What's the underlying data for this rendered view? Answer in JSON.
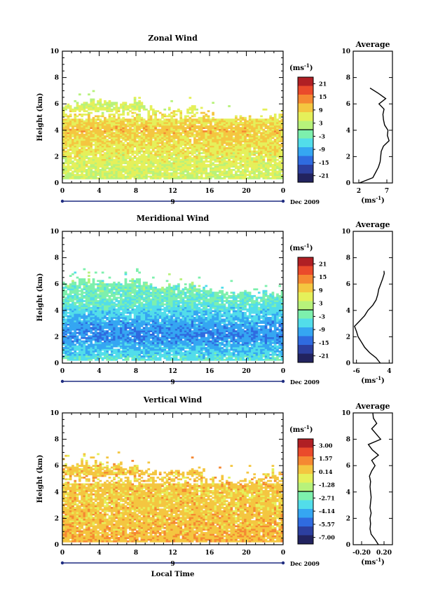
{
  "chart_data": [
    {
      "type": "heatmap",
      "title": "Zonal Wind",
      "xlabel": "",
      "ylabel": "Height (km)",
      "xlim": [
        0,
        24
      ],
      "ylim": [
        0,
        10
      ],
      "xticks": [
        "0",
        "4",
        "8",
        "12",
        "16",
        "20",
        "0"
      ],
      "yticks": [
        "0",
        "2",
        "4",
        "6",
        "8",
        "10"
      ],
      "day_marker": "9",
      "date_label": "Dec 2009",
      "colorbar": {
        "unit_prefix": "(ms",
        "unit_exp": "-1",
        "unit_suffix": ")",
        "ticks": [
          "21",
          "15",
          "9",
          "3",
          "-3",
          "-9",
          "-15",
          "-21"
        ],
        "range": [
          -24,
          24
        ]
      },
      "field": {
        "cloud_base_km": 0.3,
        "cloud_top_km": [
          5.8,
          5.9,
          6.0,
          6.1,
          6.2,
          6.0,
          5.9,
          6.0,
          6.1,
          5.8,
          5.5,
          5.3,
          5.6,
          5.3,
          5.8,
          5.2,
          5.3,
          5.0,
          5.1,
          4.9,
          5.0,
          4.9,
          5.2,
          5.2,
          5.3
        ],
        "gap_km": [
          4.8,
          5.4
        ],
        "profile_km": [
          0,
          1,
          2,
          3,
          4,
          5,
          6
        ],
        "profile_value": [
          3,
          5,
          6,
          8,
          10,
          7,
          4
        ]
      },
      "average": {
        "title": "Average",
        "xlim": [
          1,
          8
        ],
        "xticks": [
          "2",
          "7"
        ],
        "xlabel_prefix": "(ms",
        "xlabel_exp": "-1",
        "xlabel_suffix": ")",
        "height_km": [
          0.0,
          0.4,
          0.8,
          1.2,
          1.6,
          2.0,
          2.4,
          2.8,
          3.2,
          3.6,
          4.0,
          4.4,
          4.8,
          5.2,
          5.6,
          6.0,
          6.4,
          6.8,
          7.2
        ],
        "value": [
          2.1,
          4.5,
          5.0,
          5.5,
          5.8,
          5.9,
          6.0,
          6.4,
          7.4,
          7.1,
          7.2,
          6.6,
          6.4,
          6.3,
          6.5,
          5.6,
          6.8,
          5.5,
          4.0
        ]
      }
    },
    {
      "type": "heatmap",
      "title": "Meridional Wind",
      "xlabel": "",
      "ylabel": "Height (km)",
      "xlim": [
        0,
        24
      ],
      "ylim": [
        0,
        10
      ],
      "xticks": [
        "0",
        "4",
        "8",
        "12",
        "16",
        "20",
        "0"
      ],
      "yticks": [
        "0",
        "2",
        "4",
        "6",
        "8",
        "10"
      ],
      "day_marker": "9",
      "date_label": "Dec 2009",
      "colorbar": {
        "unit_prefix": "(ms",
        "unit_exp": "-1",
        "unit_suffix": ")",
        "ticks": [
          "21",
          "15",
          "9",
          "3",
          "-3",
          "-9",
          "-15",
          "-21"
        ],
        "range": [
          -24,
          24
        ]
      },
      "field": {
        "cloud_base_km": 0.2,
        "cloud_top_km": [
          6.0,
          6.1,
          6.2,
          6.1,
          6.3,
          6.2,
          6.0,
          6.1,
          6.2,
          5.9,
          5.8,
          5.7,
          5.9,
          5.7,
          5.9,
          5.6,
          5.5,
          5.4,
          5.4,
          5.3,
          5.3,
          5.2,
          5.3,
          5.2,
          5.2
        ],
        "gap_km": [
          6.3,
          6.3
        ],
        "profile_km": [
          0,
          1,
          2,
          3,
          4,
          5,
          6
        ],
        "profile_value": [
          -4,
          -8,
          -12,
          -10,
          -6,
          -3,
          -2
        ]
      },
      "average": {
        "title": "Average",
        "xlim": [
          -7,
          5
        ],
        "xticks": [
          "-6",
          "4"
        ],
        "xlabel_prefix": "(ms",
        "xlabel_exp": "-1",
        "xlabel_suffix": ")",
        "height_km": [
          0.0,
          0.4,
          0.8,
          1.2,
          1.6,
          2.0,
          2.4,
          2.8,
          3.2,
          3.6,
          4.0,
          4.4,
          4.8,
          5.2,
          5.6,
          6.0,
          6.4,
          6.8,
          7.0
        ],
        "value": [
          1.3,
          0.0,
          -2.0,
          -3.5,
          -4.5,
          -5.5,
          -6.0,
          -6.6,
          -5.0,
          -3.5,
          -2.5,
          -1.0,
          0.0,
          0.5,
          0.8,
          1.4,
          2.0,
          2.5,
          2.4
        ]
      }
    },
    {
      "type": "heatmap",
      "title": "Vertical Wind",
      "xlabel": "Local Time",
      "ylabel": "Height (km)",
      "xlim": [
        0,
        24
      ],
      "ylim": [
        0,
        10
      ],
      "xticks": [
        "0",
        "4",
        "8",
        "12",
        "16",
        "20",
        "0"
      ],
      "yticks": [
        "0",
        "2",
        "4",
        "6",
        "8",
        "10"
      ],
      "day_marker": "9",
      "date_label": "Dec 2009",
      "colorbar": {
        "unit_prefix": "(ms",
        "unit_exp": "-1",
        "unit_suffix": ")",
        "ticks": [
          "3.00",
          "1.57",
          "0.14",
          "-1.28",
          "-2.71",
          "-4.14",
          "-5.57",
          "-7.00"
        ],
        "range": [
          -7.71,
          3.71
        ]
      },
      "field": {
        "cloud_base_km": 0.2,
        "cloud_top_km": [
          6.1,
          6.0,
          6.3,
          6.1,
          6.2,
          6.0,
          6.1,
          5.8,
          5.9,
          5.5,
          5.4,
          5.3,
          5.5,
          5.3,
          5.6,
          5.2,
          5.0,
          5.0,
          5.1,
          4.9,
          5.0,
          5.1,
          5.2,
          5.3,
          5.4
        ],
        "gap_km": [
          4.6,
          5.2
        ],
        "profile_km": [
          0,
          1,
          2,
          3,
          4,
          5,
          6
        ],
        "profile_value": [
          0.7,
          0.5,
          0.4,
          0.3,
          0.3,
          0.35,
          0.3
        ]
      },
      "average": {
        "title": "Average",
        "xlim": [
          -0.35,
          0.35
        ],
        "xticks": [
          "-0.20",
          "0.20"
        ],
        "xlabel_prefix": "(ms",
        "xlabel_exp": "-1",
        "xlabel_suffix": ")",
        "height_km": [
          0.0,
          0.4,
          0.8,
          1.2,
          1.6,
          2.0,
          2.4,
          2.8,
          3.2,
          3.6,
          4.0,
          4.4,
          4.8,
          5.2,
          5.6,
          6.0,
          6.4,
          6.8,
          7.2,
          7.6,
          8.0,
          8.4,
          8.8,
          9.2,
          9.6,
          10.0
        ],
        "value": [
          0.1,
          0.04,
          -0.03,
          -0.05,
          -0.04,
          -0.05,
          -0.03,
          -0.05,
          -0.04,
          -0.03,
          -0.04,
          -0.05,
          -0.04,
          -0.06,
          -0.02,
          0.04,
          -0.02,
          0.1,
          -0.01,
          -0.08,
          0.14,
          0.06,
          -0.02,
          0.07,
          0.01,
          0.0
        ]
      }
    }
  ],
  "colors": {
    "colormap": [
      "#22235f",
      "#2c3f9f",
      "#2f6be0",
      "#35a6f2",
      "#52ddea",
      "#7df0ad",
      "#b7f27b",
      "#e5f05a",
      "#f4c640",
      "#f58832",
      "#ea4a2b",
      "#b01f24"
    ],
    "background": "#ffffff",
    "axis": "#000000",
    "date_bar": "#1f2c80"
  }
}
